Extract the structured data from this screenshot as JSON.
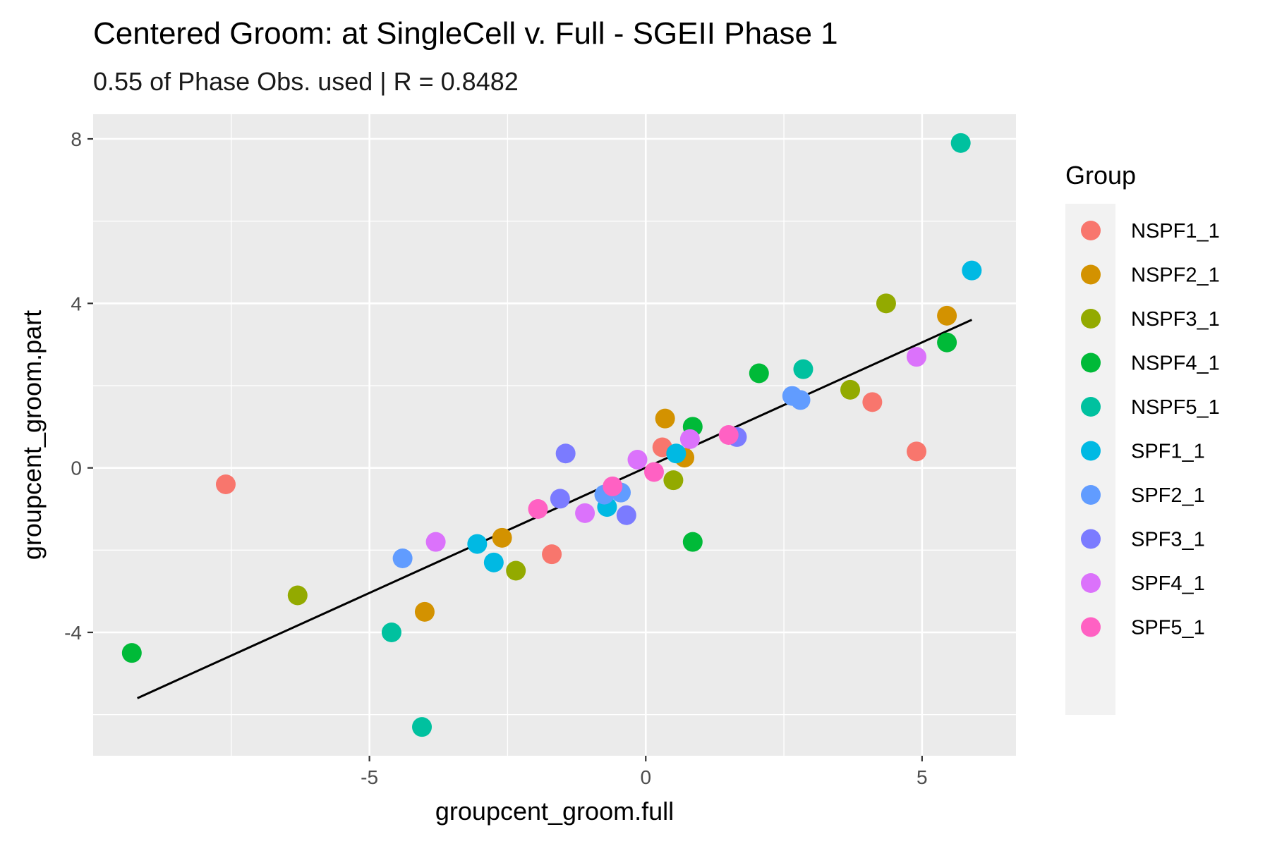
{
  "chart_data": {
    "type": "scatter",
    "title": "Centered Groom: at SingleCell v. Full - SGEII Phase 1",
    "subtitle": "0.55 of Phase Obs. used | R = 0.8482",
    "xlabel": "groupcent_groom.full",
    "ylabel": "groupcent_groom.part",
    "xlim": [
      -10.0,
      6.7
    ],
    "ylim": [
      -7.0,
      8.6
    ],
    "x_ticks": [
      -5,
      0,
      5
    ],
    "x_tick_labels": [
      "-5",
      "0",
      "5"
    ],
    "y_ticks": [
      -4,
      0,
      4,
      8
    ],
    "y_tick_labels": [
      "-4",
      "0",
      "4",
      "8"
    ],
    "grid": true,
    "legend": {
      "title": "Group",
      "position": "right"
    },
    "fit_line": {
      "x": [
        -9.2,
        5.9
      ],
      "y": [
        -5.6,
        3.6
      ],
      "color": "#000000"
    },
    "series": [
      {
        "name": "NSPF1_1",
        "color": "#F8766D",
        "points": [
          [
            -7.6,
            -0.4
          ],
          [
            -1.7,
            -2.1
          ],
          [
            0.3,
            0.5
          ],
          [
            4.1,
            1.6
          ],
          [
            4.9,
            0.4
          ]
        ]
      },
      {
        "name": "NSPF2_1",
        "color": "#D39200",
        "points": [
          [
            -4.0,
            -3.5
          ],
          [
            -2.6,
            -1.7
          ],
          [
            0.35,
            1.2
          ],
          [
            0.7,
            0.25
          ],
          [
            5.45,
            3.7
          ]
        ]
      },
      {
        "name": "NSPF3_1",
        "color": "#93AA00",
        "points": [
          [
            -6.3,
            -3.1
          ],
          [
            -2.35,
            -2.5
          ],
          [
            0.5,
            -0.3
          ],
          [
            3.7,
            1.9
          ],
          [
            4.35,
            4.0
          ]
        ]
      },
      {
        "name": "NSPF4_1",
        "color": "#00BA38",
        "points": [
          [
            -9.3,
            -4.5
          ],
          [
            0.85,
            1.0
          ],
          [
            0.85,
            -1.8
          ],
          [
            2.05,
            2.3
          ],
          [
            5.45,
            3.05
          ]
        ]
      },
      {
        "name": "NSPF5_1",
        "color": "#00C19F",
        "points": [
          [
            -4.05,
            -6.3
          ],
          [
            -4.6,
            -4.0
          ],
          [
            2.85,
            2.4
          ],
          [
            5.7,
            7.9
          ]
        ]
      },
      {
        "name": "SPF1_1",
        "color": "#00B9E3",
        "points": [
          [
            -3.05,
            -1.85
          ],
          [
            -2.75,
            -2.3
          ],
          [
            -0.7,
            -0.95
          ],
          [
            0.55,
            0.35
          ],
          [
            5.9,
            4.8
          ]
        ]
      },
      {
        "name": "SPF2_1",
        "color": "#619CFF",
        "points": [
          [
            -4.4,
            -2.2
          ],
          [
            -0.75,
            -0.65
          ],
          [
            -0.45,
            -0.6
          ],
          [
            2.65,
            1.75
          ],
          [
            2.8,
            1.65
          ]
        ]
      },
      {
        "name": "SPF3_1",
        "color": "#7B7BFF",
        "points": [
          [
            -1.45,
            0.35
          ],
          [
            -1.55,
            -0.75
          ],
          [
            -0.35,
            -1.15
          ],
          [
            1.65,
            0.75
          ]
        ]
      },
      {
        "name": "SPF4_1",
        "color": "#DB72FB",
        "points": [
          [
            -3.8,
            -1.8
          ],
          [
            -1.1,
            -1.1
          ],
          [
            -0.15,
            0.2
          ],
          [
            0.8,
            0.7
          ],
          [
            4.9,
            2.7
          ]
        ]
      },
      {
        "name": "SPF5_1",
        "color": "#FF61C3",
        "points": [
          [
            -1.95,
            -1.0
          ],
          [
            -0.6,
            -0.45
          ],
          [
            0.15,
            -0.1
          ],
          [
            1.5,
            0.8
          ]
        ]
      }
    ]
  }
}
